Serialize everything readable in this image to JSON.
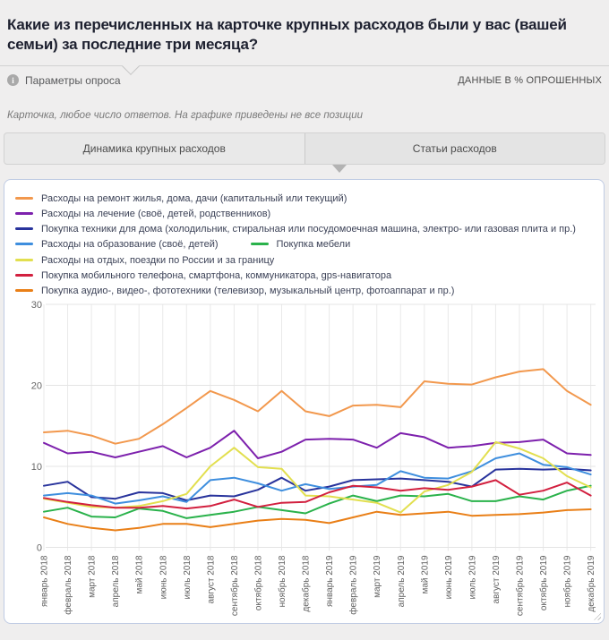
{
  "header": {
    "title": "Какие из перечисленных на карточке крупных расходов были у вас (вашей семьи) за последние три месяца?",
    "params_label": "Параметры опроса",
    "units_label": "ДАННЫЕ В % ОПРОШЕННЫХ"
  },
  "note": "Карточка, любое число ответов. На графике приведены не все позиции",
  "tabs": [
    {
      "label": "Динамика крупных расходов",
      "active": false
    },
    {
      "label": "Статьи расходов",
      "active": true
    }
  ],
  "chart_data": {
    "type": "line",
    "title": "",
    "xlabel": "",
    "ylabel": "",
    "ylim": [
      0,
      30
    ],
    "yticks": [
      0,
      10,
      20,
      30
    ],
    "grid": true,
    "legend_position": "top",
    "x_label_rotation": -90,
    "categories": [
      "январь 2018",
      "февраль 2018",
      "март 2018",
      "апрель 2018",
      "май 2018",
      "июнь 2018",
      "июль 2018",
      "август 2018",
      "сентябрь 2018",
      "октябрь 2018",
      "ноябрь 2018",
      "декабрь 2018",
      "январь 2019",
      "февраль 2019",
      "март 2019",
      "апрель 2019",
      "май 2019",
      "июнь 2019",
      "июль 2019",
      "август 2019",
      "сентябрь 2019",
      "октябрь 2019",
      "ноябрь 2019",
      "декабрь 2019"
    ],
    "legend_rows": [
      [
        0
      ],
      [
        1
      ],
      [
        2
      ],
      [
        3,
        4
      ],
      [
        5
      ],
      [
        6
      ],
      [
        7
      ]
    ],
    "series": [
      {
        "name": "Расходы на ремонт жилья, дома, дачи (капитальный или текущий)",
        "color": "#f2984d",
        "values": [
          14.2,
          14.4,
          13.8,
          12.8,
          13.4,
          15.2,
          17.2,
          19.3,
          18.2,
          16.8,
          19.3,
          16.8,
          16.2,
          17.5,
          17.6,
          17.3,
          20.5,
          20.2,
          20.1,
          21.0,
          21.7,
          22.0,
          19.3,
          17.6
        ]
      },
      {
        "name": "Расходы на лечение (своё, детей, родственников)",
        "color": "#7d21ad",
        "values": [
          12.9,
          11.6,
          11.8,
          11.1,
          11.8,
          12.5,
          11.1,
          12.3,
          14.4,
          11.0,
          11.8,
          13.3,
          13.4,
          13.3,
          12.3,
          14.1,
          13.6,
          12.3,
          12.5,
          12.9,
          13.0,
          13.3,
          11.6,
          11.4
        ]
      },
      {
        "name": "Покупка техники для дома (холодильник, стиральная или посудомоечная машина, электро- или газовая плита и пр.)",
        "color": "#28339c",
        "values": [
          7.6,
          8.1,
          6.2,
          6.0,
          6.8,
          6.7,
          5.8,
          6.4,
          6.3,
          7.1,
          8.6,
          7.0,
          7.5,
          8.3,
          8.4,
          8.5,
          8.3,
          8.1,
          7.5,
          9.6,
          9.7,
          9.6,
          9.7,
          9.5
        ]
      },
      {
        "name": "Расходы на образование (своё, детей)",
        "color": "#3e8ede",
        "values": [
          6.4,
          6.7,
          6.4,
          5.4,
          5.8,
          6.3,
          5.6,
          8.3,
          8.6,
          7.9,
          7.0,
          7.8,
          7.2,
          7.5,
          7.7,
          9.4,
          8.6,
          8.5,
          9.4,
          11.0,
          11.6,
          10.2,
          9.9,
          9.0
        ]
      },
      {
        "name": "Покупка мебели",
        "color": "#2ab24b",
        "values": [
          4.4,
          4.9,
          3.8,
          3.7,
          4.8,
          4.5,
          3.6,
          4.0,
          4.4,
          5.0,
          4.6,
          4.2,
          5.4,
          6.4,
          5.7,
          6.4,
          6.3,
          6.6,
          5.7,
          5.7,
          6.3,
          5.9,
          7.0,
          7.6
        ]
      },
      {
        "name": "Расходы на отдых, поездки по России и за границу",
        "color": "#e2df4f",
        "values": [
          6.0,
          5.5,
          5.0,
          4.9,
          5.1,
          5.7,
          6.6,
          10.0,
          12.3,
          9.9,
          9.7,
          6.4,
          6.3,
          5.9,
          5.5,
          4.3,
          6.9,
          7.7,
          9.3,
          13.0,
          12.2,
          11.0,
          8.8,
          7.4
        ]
      },
      {
        "name": "Покупка мобильного телефона, смартфона, коммуникатора, gps-навигатора",
        "color": "#d2203f",
        "values": [
          6.1,
          5.6,
          5.2,
          4.9,
          4.9,
          5.1,
          4.8,
          5.1,
          5.9,
          5.0,
          5.5,
          5.6,
          6.8,
          7.6,
          7.4,
          7.0,
          7.3,
          7.1,
          7.5,
          8.3,
          6.5,
          7.0,
          8.0,
          6.4
        ]
      },
      {
        "name": "Покупка аудио-, видео-, фототехники (телевизор, музыкальный центр, фотоаппарат и пр.)",
        "color": "#e97f17",
        "values": [
          3.7,
          2.9,
          2.4,
          2.1,
          2.4,
          2.9,
          2.9,
          2.5,
          2.9,
          3.3,
          3.5,
          3.4,
          3.0,
          3.7,
          4.4,
          4.0,
          4.2,
          4.4,
          3.9,
          4.0,
          4.1,
          4.3,
          4.6,
          4.7
        ]
      }
    ]
  }
}
